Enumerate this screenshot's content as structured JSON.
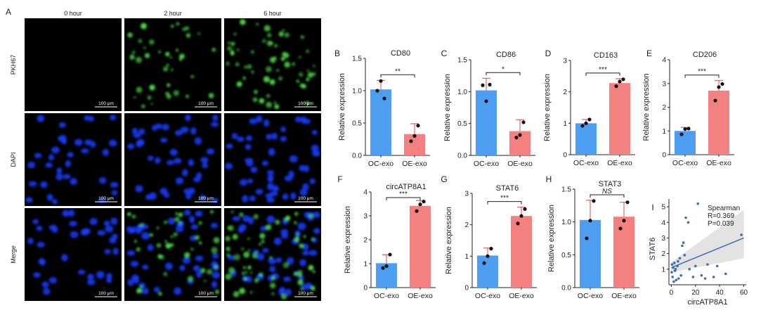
{
  "panel_letters": [
    "A",
    "B",
    "C",
    "D",
    "E",
    "F",
    "G",
    "H",
    "I"
  ],
  "micrographs": {
    "columns": [
      "0 hour",
      "2 hour",
      "6 hour"
    ],
    "rows": [
      "PKH67",
      "DAPI",
      "Merge"
    ],
    "scale_label": "100 μm",
    "colors": {
      "green": "#4fe04a",
      "blue": "#1a3cff",
      "black": "#000000"
    }
  },
  "colors": {
    "oc": "#4d9ef2",
    "oe": "#f58080",
    "error": "#d94a4a",
    "point": "#111111",
    "regression": "#3b6fb0",
    "ci": "#dcdcdc"
  },
  "chart_data": [
    {
      "id": "B",
      "type": "bar",
      "title": "CD80",
      "ylabel": "Relative expression",
      "categories": [
        "OC-exo",
        "OE-exo"
      ],
      "values": [
        1.02,
        0.33
      ],
      "error": [
        0.14,
        0.16
      ],
      "points": [
        [
          1.0,
          1.15,
          0.88
        ],
        [
          0.22,
          0.3,
          0.46
        ]
      ],
      "ylim": [
        0,
        1.5
      ],
      "yticks": [
        "0.0",
        "0.5",
        "1.0",
        "1.5"
      ],
      "significance": "**"
    },
    {
      "id": "C",
      "type": "bar",
      "title": "CD86",
      "ylabel": "Relative expression",
      "categories": [
        "OC-exo",
        "OE-exo"
      ],
      "values": [
        1.02,
        0.38
      ],
      "error": [
        0.19,
        0.18
      ],
      "points": [
        [
          1.1,
          0.85,
          1.11
        ],
        [
          0.28,
          0.32,
          0.52
        ]
      ],
      "ylim": [
        0,
        1.5
      ],
      "yticks": [
        "0.0",
        "0.5",
        "1.0",
        "1.5"
      ],
      "significance": "*"
    },
    {
      "id": "D",
      "type": "bar",
      "title": "CD163",
      "ylabel": "Relative expression",
      "categories": [
        "OC-exo",
        "OE-exo"
      ],
      "values": [
        1.0,
        2.28
      ],
      "error": [
        0.12,
        0.14
      ],
      "points": [
        [
          0.92,
          1.0,
          1.12
        ],
        [
          2.18,
          2.33,
          2.4
        ]
      ],
      "ylim": [
        0,
        3
      ],
      "yticks": [
        "0",
        "1",
        "2",
        "3"
      ],
      "significance": "***"
    },
    {
      "id": "E",
      "type": "bar",
      "title": "CD206",
      "ylabel": "Relative expression",
      "categories": [
        "OC-exo",
        "OE-exo"
      ],
      "values": [
        1.0,
        2.7
      ],
      "error": [
        0.15,
        0.42
      ],
      "points": [
        [
          0.86,
          1.08,
          1.1
        ],
        [
          2.28,
          2.85,
          2.98
        ]
      ],
      "ylim": [
        0,
        4
      ],
      "yticks": [
        "0",
        "1",
        "2",
        "3",
        "4"
      ],
      "significance": "***"
    },
    {
      "id": "F",
      "type": "bar",
      "title": "circATP8A1",
      "ylabel": "Relative expression",
      "categories": [
        "OC-exo",
        "OE-exo"
      ],
      "values": [
        1.02,
        3.42
      ],
      "error": [
        0.35,
        0.22
      ],
      "points": [
        [
          0.82,
          0.9,
          1.38
        ],
        [
          3.2,
          3.48,
          3.6
        ]
      ],
      "ylim": [
        0,
        4
      ],
      "yticks": [
        "0",
        "1",
        "2",
        "3",
        "4"
      ],
      "significance": "***"
    },
    {
      "id": "G",
      "type": "bar",
      "title": "STAT6",
      "ylabel": "Relative expression",
      "categories": [
        "OC-exo",
        "OE-exo"
      ],
      "values": [
        1.02,
        2.28
      ],
      "error": [
        0.24,
        0.28
      ],
      "points": [
        [
          0.78,
          1.0,
          1.24
        ],
        [
          2.04,
          2.28,
          2.5
        ]
      ],
      "ylim": [
        0,
        3
      ],
      "yticks": [
        "0",
        "1",
        "2",
        "3"
      ],
      "significance": "***"
    },
    {
      "id": "H",
      "type": "bar",
      "title": "STAT3",
      "ylabel": "Relative expression",
      "categories": [
        "OC-exo",
        "OE-exo"
      ],
      "values": [
        1.03,
        1.08
      ],
      "error": [
        0.3,
        0.22
      ],
      "points": [
        [
          0.75,
          1.02,
          1.32
        ],
        [
          0.9,
          1.02,
          1.3
        ]
      ],
      "ylim": [
        0,
        1.5
      ],
      "yticks": [
        "0.0",
        "0.5",
        "1.0",
        "1.5"
      ],
      "significance": "NS"
    },
    {
      "id": "I",
      "type": "scatter",
      "title": "",
      "xlabel": "circATP8A1",
      "ylabel": "STAT6",
      "xlim": [
        -2,
        62
      ],
      "ylim": [
        0,
        5.5
      ],
      "xticks": [
        0,
        20,
        40,
        60
      ],
      "yticks": [
        1,
        2,
        3,
        4,
        5
      ],
      "x": [
        0.3,
        0.6,
        1,
        1.5,
        2,
        2.5,
        3,
        3.5,
        4,
        5,
        5.5,
        6,
        7,
        8,
        9,
        10,
        11,
        12,
        14,
        15,
        18,
        20,
        22,
        25,
        28,
        30,
        35,
        38,
        45,
        58
      ],
      "y": [
        0.8,
        1.3,
        0.5,
        1.1,
        0.2,
        1.4,
        0.9,
        1.0,
        0.3,
        1.2,
        1.5,
        0.4,
        1.7,
        0.6,
        2.5,
        2.7,
        1.9,
        4.3,
        4.0,
        1.0,
        0.5,
        1.2,
        5.2,
        0.6,
        0.4,
        1.3,
        0.5,
        1.2,
        0.7,
        3.2
      ],
      "fit": {
        "x0": 0,
        "y0": 1.1,
        "x1": 60,
        "y1": 3.0
      },
      "annotation": [
        "Spearman",
        "R=0.369",
        "P=0.039"
      ]
    }
  ]
}
